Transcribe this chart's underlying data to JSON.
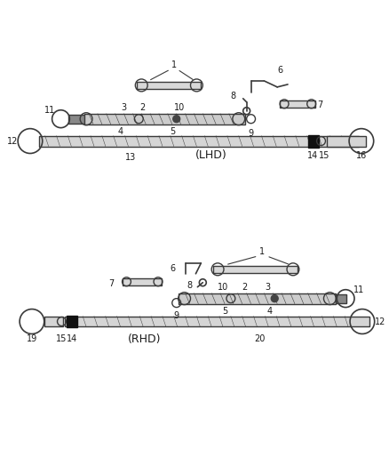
{
  "bg_color": "#ffffff",
  "line_color": "#3a3a3a",
  "text_color": "#1a1a1a",
  "figsize": [
    4.38,
    5.33
  ],
  "dpi": 100,
  "lhd_label": "(LHD)",
  "rhd_label": "(RHD)"
}
